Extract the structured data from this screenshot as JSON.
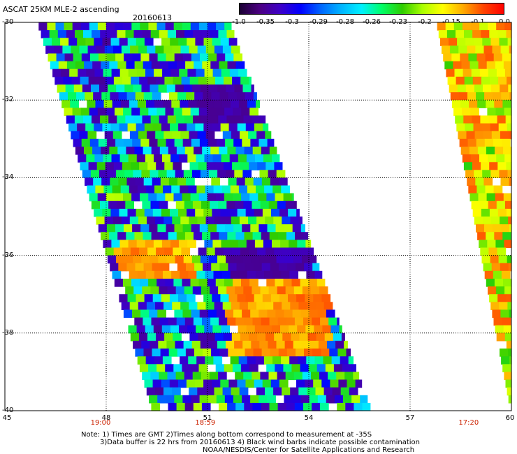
{
  "header": {
    "title": "ASCAT 25KM MLE-2 ascending",
    "date": "20160613"
  },
  "colorbar": {
    "labels": [
      "-1.0",
      "-0.35",
      "-0.3",
      "-0.29",
      "-0.28",
      "-0.26",
      "-0.23",
      "-0.2",
      "-0.15",
      "-0.1",
      "0.0"
    ],
    "colors": [
      "#1a0033",
      "#4b0082",
      "#3d00c8",
      "#0000ff",
      "#0066ff",
      "#00b4ff",
      "#00f0ff",
      "#00ff66",
      "#2ecc00",
      "#aaff00",
      "#ffff00",
      "#ffaa00",
      "#ff4400",
      "#ff0000"
    ]
  },
  "axes": {
    "y_ticks": [
      "-30",
      "-32",
      "-34",
      "-36",
      "-38",
      "-40"
    ],
    "x_ticks": [
      "45",
      "48",
      "51",
      "54",
      "57",
      "60"
    ],
    "time_labels": [
      "19:00",
      "18:59",
      "17:20"
    ]
  },
  "notes": {
    "line1": "Note: 1) Times are GMT 2)Times along bottom correspond to measurement at -35S",
    "line2": "3)Data buffer is 22 hrs from 20160613 4) Black wind barbs indicate possible contamination",
    "line3": "NOAA/NESDIS/Center for Satellite Applications and Research"
  },
  "chart_data": {
    "type": "heatmap",
    "title": "ASCAT 25KM MLE-2 ascending",
    "subtitle": "20160613",
    "xlabel": "",
    "ylabel": "",
    "xlim": [
      45,
      60
    ],
    "ylim": [
      -40,
      -30
    ],
    "x_ticks": [
      45,
      48,
      51,
      54,
      57,
      60
    ],
    "y_ticks": [
      -30,
      -32,
      -34,
      -36,
      -38,
      -40
    ],
    "color_scale": [
      -1.0,
      -0.35,
      -0.3,
      -0.29,
      -0.28,
      -0.26,
      -0.23,
      -0.2,
      -0.15,
      -0.1,
      0.0
    ],
    "grid": true,
    "swaths": [
      {
        "time": "19:00 / 18:59",
        "lat_range": [
          -40,
          -30
        ],
        "west_lon_at_north": 46.0,
        "east_lon_at_north": 51.7,
        "west_lon_at_south": 49.4,
        "east_lon_at_south": 55.9
      },
      {
        "time": "17:20",
        "lat_range": [
          -40,
          -30
        ],
        "west_lon_at_north": 57.8,
        "east_lon_at_north": 60.0,
        "west_lon_at_south": 60.0,
        "east_lon_at_south": 60.0
      }
    ],
    "features": [
      {
        "description": "low MLE region (deep blue/purple)",
        "lat_range": [
          -32.5,
          -31.5
        ],
        "lon_range": [
          50.5,
          52.0
        ],
        "value": -0.35
      },
      {
        "description": "low MLE region (deep blue/purple)",
        "lat_range": [
          -36.8,
          -35.7
        ],
        "lon_range": [
          51.5,
          54.0
        ],
        "value": -0.35
      },
      {
        "description": "high MLE region (orange)",
        "lat_range": [
          -38.5,
          -36.5
        ],
        "lon_range": [
          51.5,
          54.5
        ],
        "value": -0.12
      },
      {
        "description": "high MLE region (orange)",
        "lat_range": [
          -36.5,
          -35.5
        ],
        "lon_range": [
          48.2,
          50.5
        ],
        "value": -0.13
      }
    ]
  }
}
